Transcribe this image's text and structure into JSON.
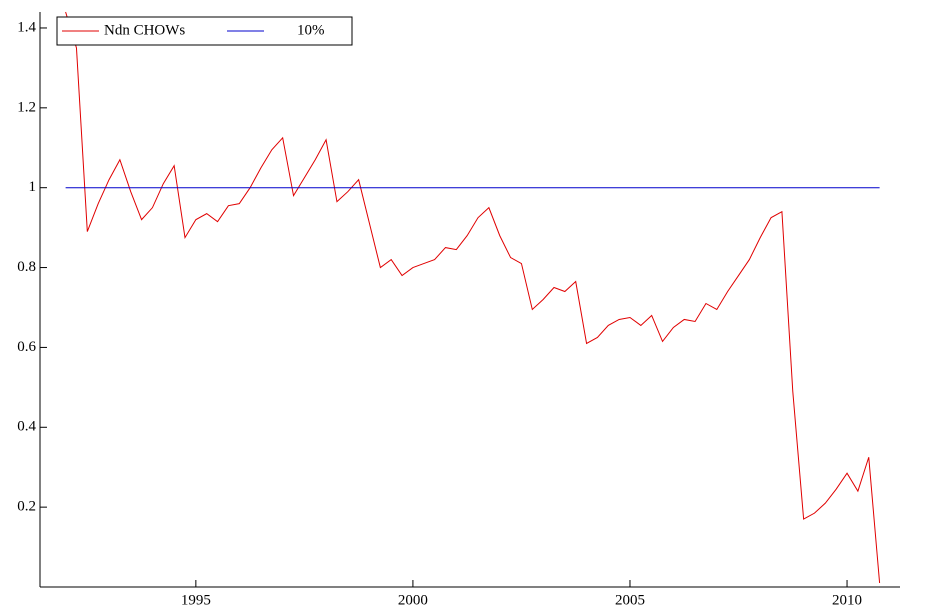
{
  "chart_data": {
    "type": "line",
    "x": [
      1992,
      1992.25,
      1992.5,
      1992.75,
      1993,
      1993.25,
      1993.5,
      1993.75,
      1994,
      1994.25,
      1994.5,
      1994.75,
      1995,
      1995.25,
      1995.5,
      1995.75,
      1996,
      1996.25,
      1996.5,
      1996.75,
      1997,
      1997.25,
      1997.5,
      1997.75,
      1998,
      1998.25,
      1998.5,
      1998.75,
      1999,
      1999.25,
      1999.5,
      1999.75,
      2000,
      2000.25,
      2000.5,
      2000.75,
      2001,
      2001.25,
      2001.5,
      2001.75,
      2002,
      2002.25,
      2002.5,
      2002.75,
      2003,
      2003.25,
      2003.5,
      2003.75,
      2004,
      2004.25,
      2004.5,
      2004.75,
      2005,
      2005.25,
      2005.5,
      2005.75,
      2006,
      2006.25,
      2006.5,
      2006.75,
      2007,
      2007.25,
      2007.5,
      2007.75,
      2008,
      2008.25,
      2008.5,
      2008.75,
      2009,
      2009.25,
      2009.5,
      2009.75,
      2010,
      2010.25,
      2010.5,
      2010.75
    ],
    "series": [
      {
        "name": "Ndn CHOWs",
        "color": "#e00000",
        "values": [
          1.44,
          1.35,
          0.89,
          0.96,
          1.02,
          1.07,
          0.99,
          0.92,
          0.95,
          1.01,
          1.055,
          0.875,
          0.92,
          0.935,
          0.915,
          0.955,
          0.96,
          1.0,
          1.05,
          1.095,
          1.125,
          0.98,
          1.025,
          1.07,
          1.12,
          0.965,
          0.99,
          1.02,
          0.91,
          0.8,
          0.82,
          0.78,
          0.8,
          0.81,
          0.82,
          0.85,
          0.845,
          0.88,
          0.925,
          0.95,
          0.88,
          0.825,
          0.81,
          0.695,
          0.72,
          0.75,
          0.74,
          0.765,
          0.61,
          0.625,
          0.655,
          0.67,
          0.675,
          0.655,
          0.68,
          0.615,
          0.65,
          0.67,
          0.665,
          0.71,
          0.695,
          0.74,
          0.78,
          0.82,
          0.875,
          0.925,
          0.94,
          0.49,
          0.17,
          0.185,
          0.21,
          0.245,
          0.285,
          0.24,
          0.325,
          0.01
        ]
      },
      {
        "name": "10%",
        "color": "#0000cc",
        "values": [
          1,
          1,
          1,
          1,
          1,
          1,
          1,
          1,
          1,
          1,
          1,
          1,
          1,
          1,
          1,
          1,
          1,
          1,
          1,
          1,
          1,
          1,
          1,
          1,
          1,
          1,
          1,
          1,
          1,
          1,
          1,
          1,
          1,
          1,
          1,
          1,
          1,
          1,
          1,
          1,
          1,
          1,
          1,
          1,
          1,
          1,
          1,
          1,
          1,
          1,
          1,
          1,
          1,
          1,
          1,
          1,
          1,
          1,
          1,
          1,
          1,
          1,
          1,
          1,
          1,
          1,
          1,
          1,
          1,
          1,
          1,
          1,
          1,
          1,
          1,
          1
        ]
      }
    ],
    "xlim": [
      1991.41,
      2011.22
    ],
    "xticks": [
      1995,
      2000,
      2005,
      2010
    ],
    "ylim": [
      0,
      1.44
    ],
    "yticks": [
      0.2,
      0.4,
      0.6,
      0.8,
      1.0,
      1.2,
      1.4
    ],
    "legend": "top-left"
  }
}
